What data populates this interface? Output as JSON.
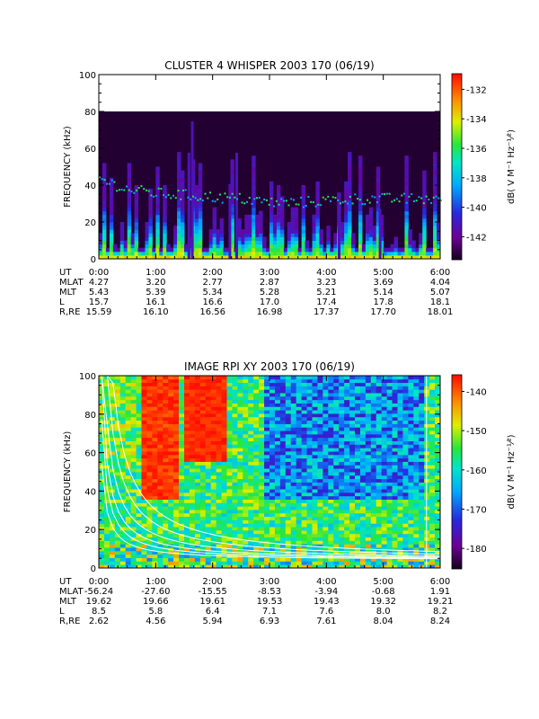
{
  "chart_data": [
    {
      "type": "heatmap",
      "title": "CLUSTER 4 WHISPER 2003 170 (06/19)",
      "ylabel": "FREQUENCY (kHz)",
      "ylim": [
        0,
        100
      ],
      "xlim": [
        "0:00",
        "6:00"
      ],
      "y_ticks": [
        "0",
        "20",
        "40",
        "60",
        "80",
        "100"
      ],
      "x_ticks": [
        "0:00",
        "1:00",
        "2:00",
        "3:00",
        "4:00",
        "5:00",
        "6:00"
      ],
      "data_upper_limit_khz": 80,
      "colorbar": {
        "label": "dB( V M⁻¹ Hz⁻¹⁄²)",
        "range": [
          -143.5,
          -131
        ],
        "ticks": [
          "-132",
          "-134",
          "-136",
          "-138",
          "-140",
          "-142"
        ]
      },
      "features": {
        "plasma_line_khz": [
          [
            0,
            44
          ],
          [
            0.25,
            41
          ],
          [
            0.5,
            38
          ],
          [
            1,
            36
          ],
          [
            1.5,
            35
          ],
          [
            2,
            34
          ],
          [
            2.5,
            33
          ],
          [
            3,
            31
          ],
          [
            3.5,
            31
          ],
          [
            4,
            32
          ],
          [
            4.5,
            33
          ],
          [
            5,
            33
          ],
          [
            5.5,
            33
          ],
          [
            6,
            33
          ]
        ]
      },
      "ephemeris": {
        "labels": [
          "UT",
          "MLAT",
          "MLT",
          "L",
          "R,RE"
        ],
        "rows": [
          [
            "0:00",
            "1:00",
            "2:00",
            "3:00",
            "4:00",
            "5:00",
            "6:00"
          ],
          [
            "4.27",
            "3.20",
            "2.77",
            "2.87",
            "3.23",
            "3.69",
            "4.04"
          ],
          [
            "5.43",
            "5.39",
            "5.34",
            "5.28",
            "5.21",
            "5.14",
            "5.07"
          ],
          [
            "15.7",
            "16.1",
            "16.6",
            "17.0",
            "17.4",
            "17.8",
            "18.1"
          ],
          [
            "15.59",
            "16.10",
            "16.56",
            "16.98",
            "17.37",
            "17.70",
            "18.01"
          ]
        ]
      }
    },
    {
      "type": "heatmap",
      "title": "IMAGE RPI XY 2003 170 (06/19)",
      "ylabel": "FREQUENCY (kHz)",
      "ylim": [
        0,
        100
      ],
      "xlim": [
        "0:00",
        "6:00"
      ],
      "y_ticks": [
        "0",
        "20",
        "40",
        "60",
        "80",
        "100"
      ],
      "x_ticks": [
        "0:00",
        "1:00",
        "2:00",
        "3:00",
        "4:00",
        "5:00",
        "6:00"
      ],
      "colorbar": {
        "label": "dB( V M⁻¹ Hz⁻¹⁄²)",
        "range": [
          -185,
          -136
        ],
        "ticks": [
          "-140",
          "-150",
          "-160",
          "-170",
          "-180"
        ]
      },
      "ephemeris": {
        "labels": [
          "UT",
          "MLAT",
          "MLT",
          "L",
          "R,RE"
        ],
        "rows": [
          [
            "0:00",
            "1:00",
            "2:00",
            "3:00",
            "4:00",
            "5:00",
            "6:00"
          ],
          [
            "-56.24",
            "-27.60",
            "-15.55",
            "-8.53",
            "-3.94",
            "-0.68",
            "1.91"
          ],
          [
            "19.62",
            "19.66",
            "19.61",
            "19.53",
            "19.43",
            "19.32",
            "19.21"
          ],
          [
            "8.5",
            "5.8",
            "6.4",
            "7.1",
            "7.6",
            "8.0",
            "8.2"
          ],
          [
            "2.62",
            "4.56",
            "5.94",
            "6.93",
            "7.61",
            "8.04",
            "8.24"
          ]
        ]
      }
    }
  ]
}
